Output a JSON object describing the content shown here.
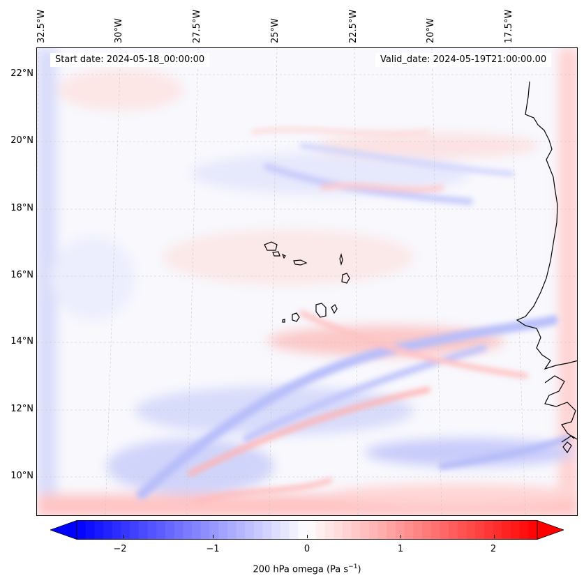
{
  "map": {
    "title_left": "Start date: 2024-05-18_00:00:00",
    "title_right": "Valid_date: 2024-05-19T21:00:00.00",
    "lon_labels": [
      "32.5°W",
      "30°W",
      "27.5°W",
      "25°W",
      "22.5°W",
      "20°W",
      "17.5°W"
    ],
    "lat_labels": [
      "22°N",
      "20°N",
      "18°N",
      "16°N",
      "14°N",
      "12°N",
      "10°N"
    ],
    "extent": {
      "lon_min": -32.8,
      "lon_max": -15.2,
      "lat_min": 8.9,
      "lat_max": 22.7
    },
    "colors": {
      "negative": "#0000ff",
      "positive": "#ff0000",
      "neutral": "#ffffff",
      "coast": "#000000"
    }
  },
  "colorbar": {
    "label": "200 hPa omega (Pa s",
    "label_sup": "−1",
    "label_close": ")",
    "ticks": [
      "−2",
      "−1",
      "0",
      "1",
      "2"
    ],
    "tick_values": [
      -2,
      -1,
      0,
      1,
      2
    ],
    "range": [
      -2.6,
      2.6
    ],
    "extend": "both"
  }
}
